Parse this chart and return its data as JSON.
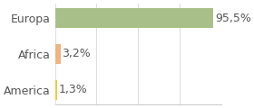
{
  "categories": [
    "Europa",
    "Africa",
    "America"
  ],
  "values": [
    95.5,
    3.2,
    1.3
  ],
  "bar_colors": [
    "#a8bf8a",
    "#f0b482",
    "#f5c842"
  ],
  "labels": [
    "95,5%",
    "3,2%",
    "1,3%"
  ],
  "background_color": "#ffffff",
  "xlim": [
    0,
    100
  ],
  "label_fontsize": 9,
  "tick_fontsize": 9
}
